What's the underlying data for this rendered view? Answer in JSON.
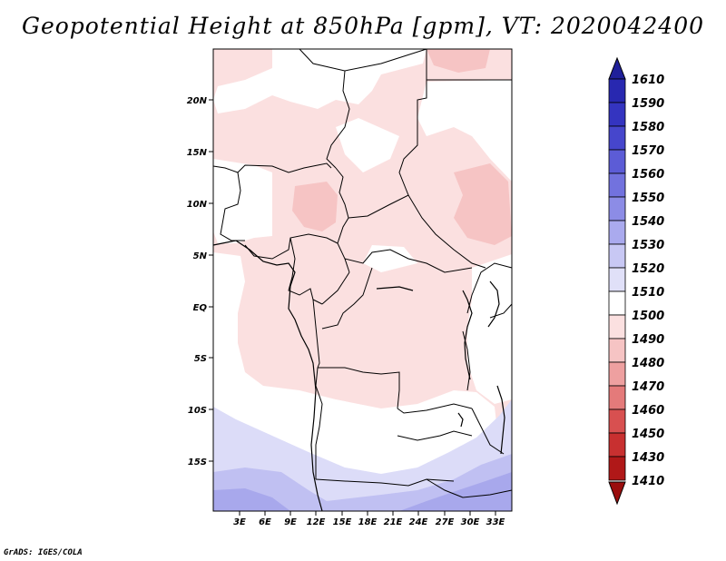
{
  "title": "Geopotential Height at 850hPa [gpm], VT: 2020042400",
  "credit": "GrADS: IGES/COLA",
  "map": {
    "lat_labels": [
      "20N",
      "15N",
      "10N",
      "5N",
      "EQ",
      "5S",
      "10S",
      "15S"
    ],
    "lon_labels": [
      "3E",
      "6E",
      "9E",
      "12E",
      "15E",
      "18E",
      "21E",
      "24E",
      "27E",
      "30E",
      "33E"
    ]
  },
  "colorbar": {
    "levels": [
      "1610",
      "1590",
      "1580",
      "1570",
      "1560",
      "1550",
      "1540",
      "1530",
      "1520",
      "1510",
      "1500",
      "1490",
      "1480",
      "1470",
      "1460",
      "1450",
      "1430",
      "1410"
    ],
    "colors": [
      "#20209a",
      "#2828b0",
      "#3434c0",
      "#4646cc",
      "#5c5cd6",
      "#7272de",
      "#8c8ce6",
      "#aaaaee",
      "#c8c8f4",
      "#e0e0f8",
      "#ffffff",
      "#fbe0e0",
      "#f6c4c4",
      "#eea0a0",
      "#e47a7a",
      "#d85050",
      "#c83030",
      "#b01818",
      "#9a0e0e"
    ],
    "top_color": "#20209a",
    "bottom_color": "#9a0e0e"
  },
  "palette": {
    "pink_light": "#fbe0e0",
    "pink_mid": "#f6c4c4",
    "blue_light": "#dcdcf8",
    "blue_mid": "#c0c0f2",
    "blue_dark": "#a8a8ec",
    "white": "#ffffff",
    "border": "#000000"
  }
}
